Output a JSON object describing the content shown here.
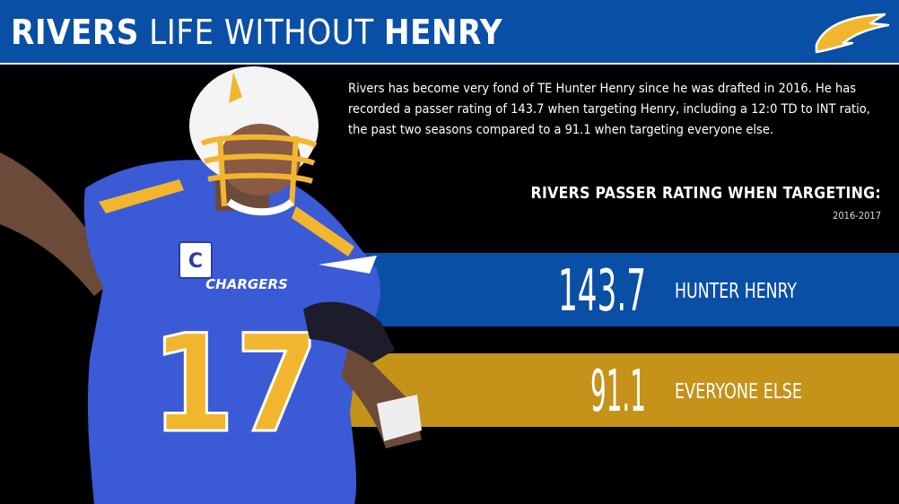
{
  "header": {
    "title_part1": "RIVERS",
    "title_part2": "LIFE WITHOUT",
    "title_part3": "HENRY"
  },
  "description": "Rivers has become very fond of TE Hunter Henry since he was drafted in 2016. He has recorded a passer rating of 143.7 when targeting Henry, including a 12:0 TD to INT ratio, the past two seasons compared to a 91.1 when targeting everyone else.",
  "player": {
    "jersey_number": "17",
    "jersey_text": "CHARGERS"
  },
  "chart_data": {
    "type": "bar",
    "title": "RIVERS PASSER RATING WHEN TARGETING:",
    "subtitle": "2016-2017",
    "categories": [
      "HUNTER HENRY",
      "EVERYONE ELSE"
    ],
    "values": [
      143.7,
      91.1
    ],
    "value_labels": [
      "143.7",
      "91.1"
    ],
    "colors": [
      "#0a4fa6",
      "#c5921a"
    ]
  },
  "colors": {
    "header_blue": "#0a4fa6",
    "gold": "#c5921a",
    "background": "#000000",
    "logo_gold": "#f2b62e"
  }
}
